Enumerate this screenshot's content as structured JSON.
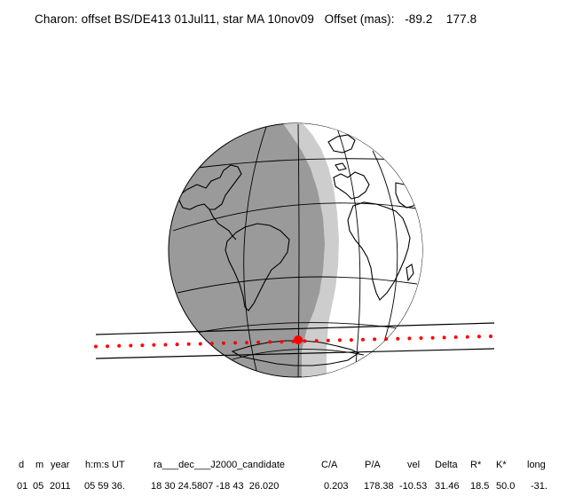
{
  "title": {
    "left": "Charon: offset BS/DE413 01Jul11, star MA 10nov09",
    "offset_label": "Offset (mas):",
    "offset_x": "-89.2",
    "offset_y": "177.8"
  },
  "colors": {
    "night": "#9a9a9a",
    "twilight": "#cdcdcd",
    "day": "#ffffff",
    "path": "#ff0000"
  },
  "table": {
    "headers": [
      "d",
      "m",
      "year",
      "h:m:s UT",
      "ra___dec___J2000_candidate",
      "C/A",
      "P/A",
      "vel",
      "Delta",
      "R*",
      "K*",
      "long"
    ],
    "values": [
      "01",
      "05",
      "2011",
      "05 59 36.",
      "18 30 24.5807 -18 43  26.020",
      "0.203",
      "178.38",
      "-10.53",
      "31.46",
      "18.5",
      "50.0",
      "-31."
    ]
  }
}
